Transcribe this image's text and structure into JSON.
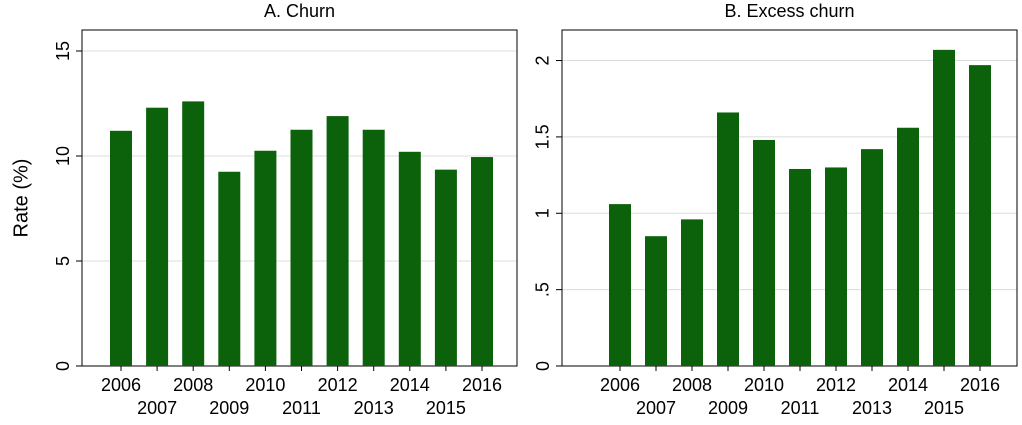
{
  "chart_data": [
    {
      "type": "bar",
      "title": "A. Churn",
      "ylabel": "Rate (%)",
      "categories": [
        "2006",
        "2007",
        "2008",
        "2009",
        "2010",
        "2011",
        "2012",
        "2013",
        "2014",
        "2015",
        "2016"
      ],
      "values": [
        11.2,
        12.3,
        12.6,
        9.25,
        10.25,
        11.25,
        11.9,
        11.25,
        10.2,
        9.35,
        9.95
      ],
      "color": "#0b620b",
      "ylim": [
        0,
        16
      ],
      "yticks": [
        0,
        5,
        10,
        15
      ],
      "grid": true
    },
    {
      "type": "bar",
      "title": "B. Excess churn",
      "categories": [
        "2006",
        "2007",
        "2008",
        "2009",
        "2010",
        "2011",
        "2012",
        "2013",
        "2014",
        "2015",
        "2016"
      ],
      "values": [
        1.06,
        0.85,
        0.96,
        1.66,
        1.48,
        1.29,
        1.3,
        1.42,
        1.56,
        2.07,
        1.97
      ],
      "color": "#0b620b",
      "ylim": [
        0,
        2.2
      ],
      "yticks": [
        0,
        {
          "value": 0.5,
          "label": ".5"
        },
        1,
        1.5,
        2
      ],
      "grid": true
    }
  ]
}
